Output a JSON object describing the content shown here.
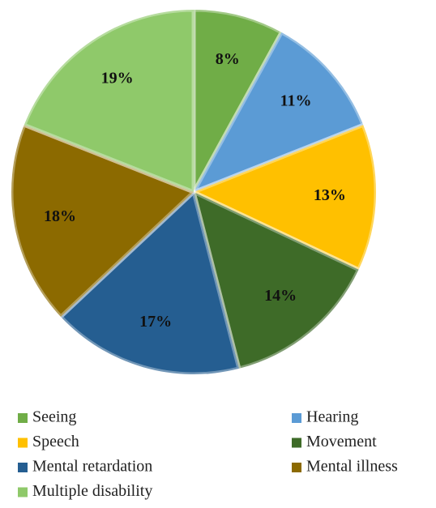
{
  "chart_data": {
    "type": "pie",
    "categories": [
      "Seeing",
      "Hearing",
      "Speech",
      "Movement",
      "Mental retardation",
      "Mental illness",
      "Multiple disability"
    ],
    "values": [
      8,
      11,
      13,
      14,
      17,
      18,
      19
    ],
    "value_labels": [
      "8%",
      "11%",
      "13%",
      "14%",
      "17%",
      "18%",
      "19%"
    ],
    "colors": [
      "#70ad47",
      "#5b9bd5",
      "#ffc000",
      "#3e6b28",
      "#255e91",
      "#8c6a00",
      "#8fc96a"
    ],
    "legend": "bottom"
  }
}
